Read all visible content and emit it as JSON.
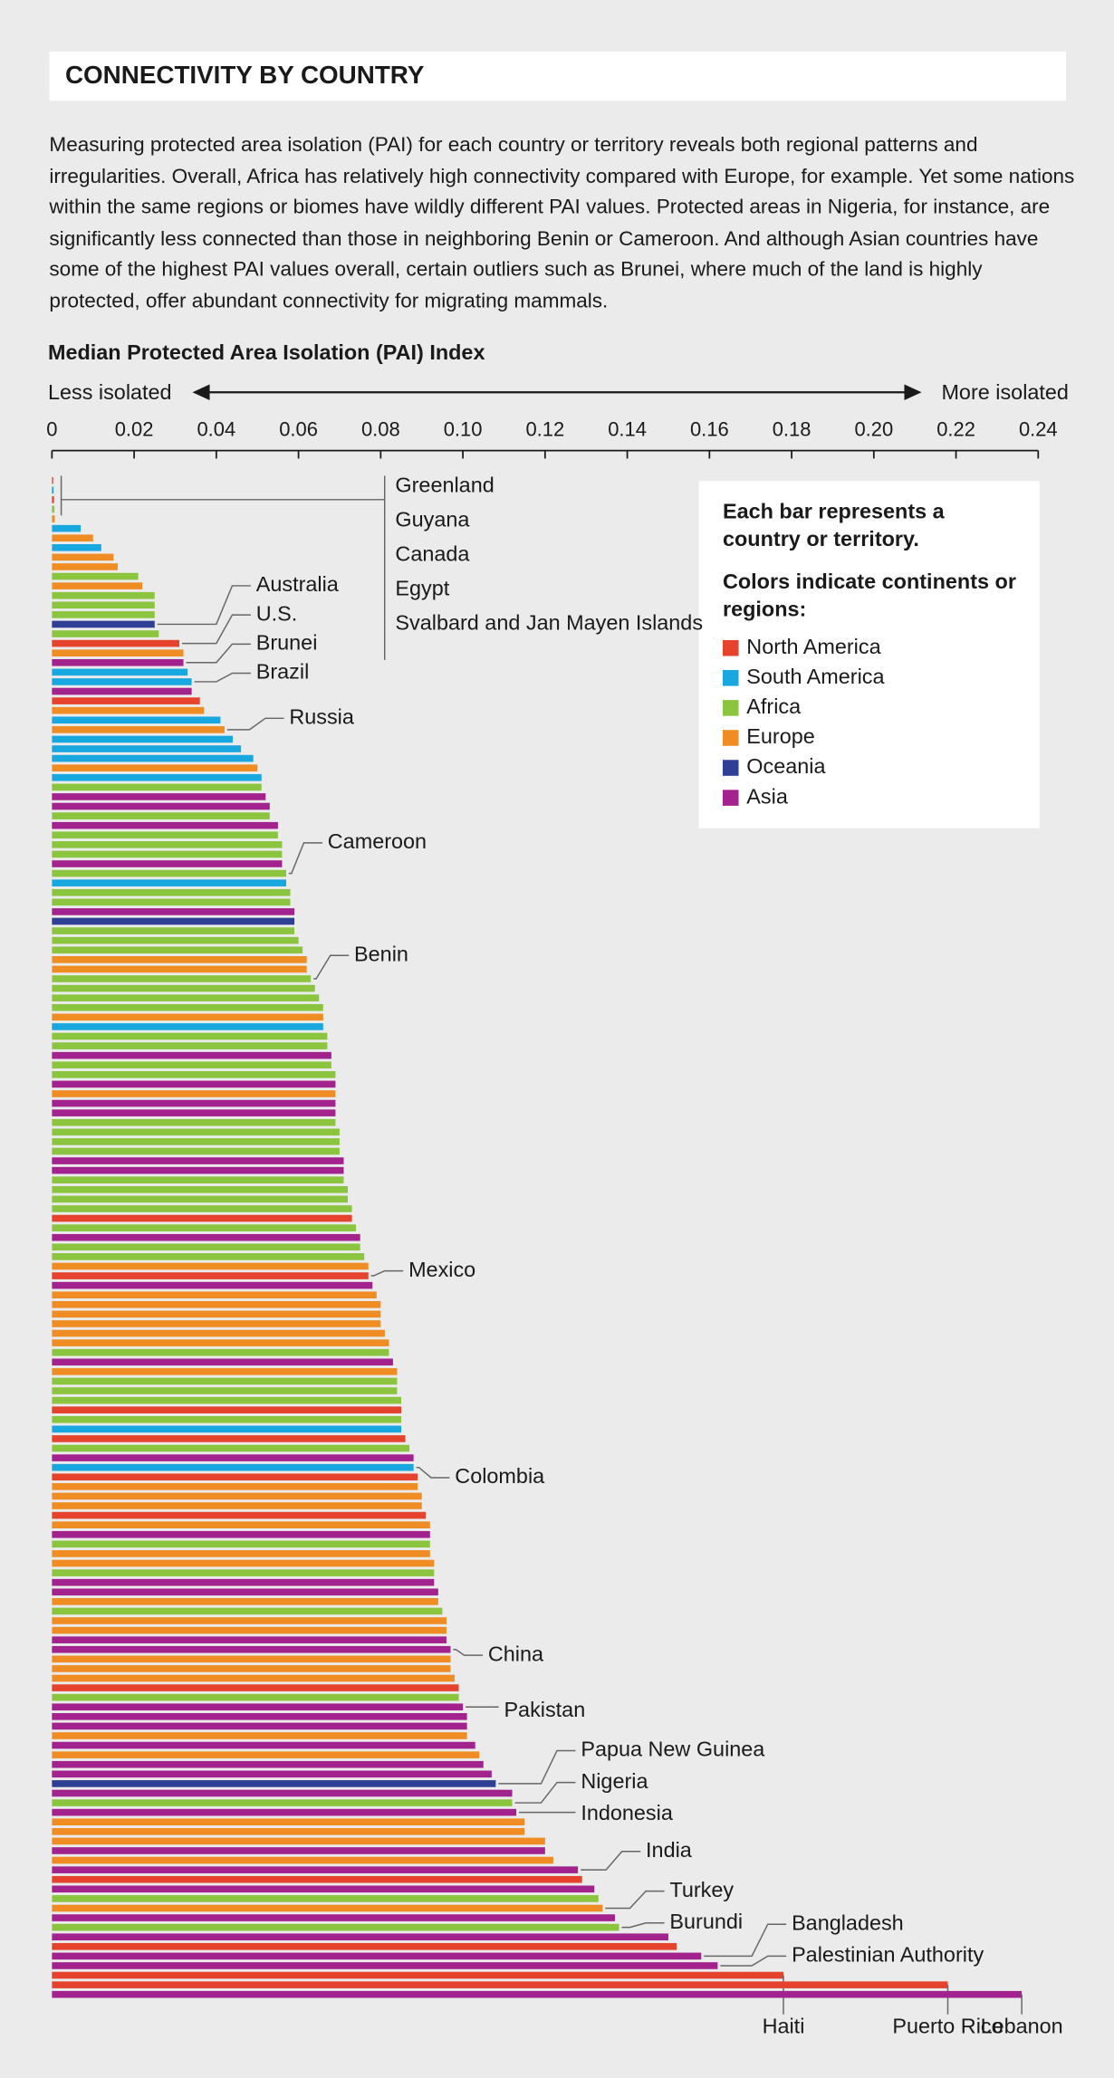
{
  "header": {
    "title": "CONNECTIVITY BY COUNTRY",
    "intro": "Measuring protected area isolation (PAI) for each country or territory reveals both regional patterns and irregularities. Overall, Africa has relatively high connectivity compared with Europe, for example. Yet some nations within the same regions or biomes have wildly different PAI values. Protected areas in Nigeria, for instance, are significantly less connected than those in neighboring Benin or Cameroon. And although Asian countries have some of the highest PAI values overall, certain outliers such as Brunei, where much of the land is highly protected, offer abundant connectivity for migrating mammals."
  },
  "chart_data": {
    "type": "bar",
    "orientation": "horizontal",
    "title": "Median Protected Area Isolation (PAI) Index",
    "left_label": "Less isolated",
    "right_label": "More isolated",
    "xlim": [
      0,
      0.24
    ],
    "xticks": [
      0,
      0.02,
      0.04,
      0.06,
      0.08,
      {
        "value": 0.1,
        "label": "0.10"
      },
      0.12,
      0.14,
      0.16,
      0.18,
      {
        "value": 0.2,
        "label": "0.20"
      },
      0.22,
      0.24
    ],
    "legend": {
      "note": "Each bar represents a country or territory.",
      "heading": "Colors indicate continents or regions:"
    },
    "regions": [
      {
        "name": "North America",
        "color": "#e5432d"
      },
      {
        "name": "South America",
        "color": "#19a7df"
      },
      {
        "name": "Africa",
        "color": "#8bc53f"
      },
      {
        "name": "Europe",
        "color": "#ef8c23"
      },
      {
        "name": "Oceania",
        "color": "#2e3f94"
      },
      {
        "name": "Asia",
        "color": "#a3238e"
      }
    ],
    "categories": [
      "Greenland",
      "Guyana",
      "Canada",
      "Egypt",
      "Svalbard and Jan Mayen Islands",
      null,
      null,
      null,
      null,
      null,
      null,
      null,
      null,
      null,
      null,
      "Australia",
      null,
      "U.S.",
      null,
      "Brunei",
      null,
      "Brazil",
      null,
      null,
      null,
      null,
      "Russia",
      null,
      null,
      null,
      null,
      null,
      null,
      null,
      null,
      null,
      null,
      null,
      null,
      null,
      null,
      "Cameroon",
      null,
      null,
      null,
      null,
      null,
      null,
      null,
      null,
      null,
      null,
      "Benin",
      null,
      null,
      null,
      null,
      null,
      null,
      null,
      null,
      null,
      null,
      null,
      null,
      null,
      null,
      null,
      null,
      null,
      null,
      null,
      null,
      null,
      null,
      null,
      null,
      null,
      null,
      null,
      null,
      null,
      null,
      "Mexico",
      null,
      null,
      null,
      null,
      null,
      null,
      null,
      null,
      null,
      null,
      null,
      null,
      null,
      null,
      null,
      null,
      null,
      null,
      null,
      "Colombia",
      null,
      null,
      null,
      null,
      null,
      null,
      null,
      null,
      null,
      null,
      null,
      null,
      null,
      null,
      null,
      null,
      null,
      null,
      "China",
      null,
      null,
      null,
      null,
      null,
      "Pakistan",
      null,
      null,
      null,
      null,
      null,
      null,
      null,
      "Papua New Guinea",
      null,
      "Nigeria",
      "Indonesia",
      null,
      null,
      null,
      null,
      null,
      "India",
      null,
      null,
      null,
      "Turkey",
      null,
      "Burundi",
      null,
      null,
      "Bangladesh",
      "Palestinian Authority",
      "Haiti",
      "Puerto Rico",
      "Lebanon"
    ],
    "values": [
      0.0003,
      0.0004,
      0.0005,
      0.0006,
      0.0007,
      0.007,
      0.01,
      0.012,
      0.015,
      0.016,
      0.021,
      0.022,
      0.025,
      0.025,
      0.025,
      0.025,
      0.026,
      0.031,
      0.032,
      0.032,
      0.033,
      0.034,
      0.034,
      0.036,
      0.037,
      0.041,
      0.042,
      0.044,
      0.046,
      0.049,
      0.05,
      0.051,
      0.051,
      0.052,
      0.053,
      0.053,
      0.055,
      0.055,
      0.056,
      0.056,
      0.056,
      0.057,
      0.057,
      0.058,
      0.058,
      0.059,
      0.059,
      0.059,
      0.06,
      0.061,
      0.062,
      0.062,
      0.063,
      0.064,
      0.065,
      0.066,
      0.066,
      0.066,
      0.067,
      0.067,
      0.068,
      0.068,
      0.069,
      0.069,
      0.069,
      0.069,
      0.069,
      0.069,
      0.07,
      0.07,
      0.07,
      0.071,
      0.071,
      0.071,
      0.072,
      0.072,
      0.073,
      0.073,
      0.074,
      0.075,
      0.075,
      0.076,
      0.077,
      0.077,
      0.078,
      0.079,
      0.08,
      0.08,
      0.08,
      0.081,
      0.082,
      0.082,
      0.083,
      0.084,
      0.084,
      0.084,
      0.085,
      0.085,
      0.085,
      0.085,
      0.086,
      0.087,
      0.088,
      0.088,
      0.089,
      0.089,
      0.09,
      0.09,
      0.091,
      0.092,
      0.092,
      0.092,
      0.092,
      0.093,
      0.093,
      0.093,
      0.094,
      0.094,
      0.095,
      0.096,
      0.096,
      0.096,
      0.097,
      0.097,
      0.097,
      0.098,
      0.099,
      0.099,
      0.1,
      0.101,
      0.101,
      0.101,
      0.103,
      0.104,
      0.105,
      0.107,
      0.108,
      0.112,
      0.112,
      0.113,
      0.115,
      0.115,
      0.12,
      0.12,
      0.122,
      0.128,
      0.129,
      0.132,
      0.133,
      0.134,
      0.137,
      0.138,
      0.15,
      0.152,
      0.158,
      0.162,
      0.178,
      0.218,
      0.236
    ],
    "region": [
      0,
      1,
      0,
      2,
      3,
      1,
      3,
      1,
      3,
      3,
      2,
      3,
      2,
      2,
      2,
      4,
      2,
      0,
      3,
      5,
      1,
      1,
      5,
      0,
      3,
      1,
      3,
      1,
      1,
      1,
      3,
      1,
      2,
      5,
      5,
      2,
      5,
      2,
      2,
      2,
      5,
      2,
      1,
      2,
      2,
      5,
      4,
      2,
      2,
      2,
      3,
      3,
      2,
      2,
      2,
      2,
      3,
      1,
      2,
      2,
      5,
      2,
      2,
      5,
      3,
      5,
      5,
      2,
      2,
      2,
      2,
      5,
      5,
      2,
      2,
      2,
      2,
      0,
      2,
      5,
      2,
      2,
      3,
      0,
      5,
      3,
      3,
      3,
      3,
      3,
      3,
      2,
      5,
      3,
      2,
      2,
      2,
      0,
      2,
      1,
      0,
      2,
      5,
      1,
      0,
      3,
      3,
      3,
      0,
      3,
      5,
      2,
      3,
      3,
      2,
      5,
      5,
      3,
      2,
      3,
      3,
      5,
      5,
      3,
      3,
      3,
      0,
      2,
      5,
      5,
      5,
      3,
      5,
      3,
      5,
      5,
      4,
      5,
      2,
      5,
      3,
      3,
      3,
      5,
      3,
      5,
      0,
      5,
      2,
      3,
      5,
      2,
      5,
      0,
      5,
      5,
      0,
      0,
      5
    ]
  }
}
